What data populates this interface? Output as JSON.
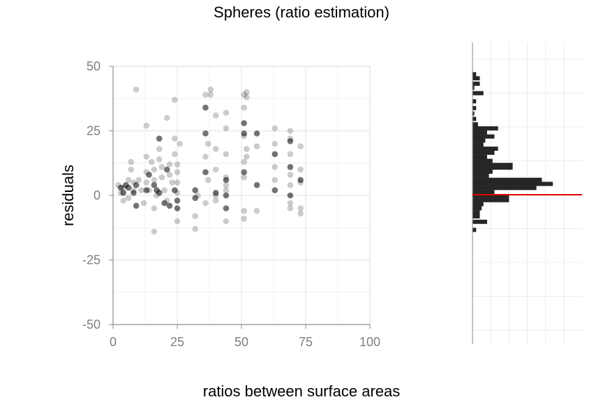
{
  "chart_data": [
    {
      "type": "scatter",
      "title": "Spheres (ratio estimation)",
      "xlabel": "ratios between surface areas",
      "ylabel": "residuals",
      "xlim": [
        0,
        100
      ],
      "ylim": [
        -50,
        50
      ],
      "xticks": [
        "0",
        "25",
        "50",
        "75",
        "100"
      ],
      "yticks": [
        "-50",
        "-25",
        "0",
        "25",
        "50"
      ],
      "grid": true,
      "point_color": "#000000",
      "light_points": [
        [
          2,
          4
        ],
        [
          3,
          1
        ],
        [
          4,
          -2
        ],
        [
          4,
          3
        ],
        [
          6,
          6
        ],
        [
          6,
          -1
        ],
        [
          7,
          13
        ],
        [
          7,
          10
        ],
        [
          8,
          5
        ],
        [
          8,
          2
        ],
        [
          9,
          41
        ],
        [
          10,
          6
        ],
        [
          11,
          2
        ],
        [
          12,
          -3
        ],
        [
          13,
          27
        ],
        [
          13,
          15
        ],
        [
          13,
          9
        ],
        [
          13,
          5
        ],
        [
          14,
          2
        ],
        [
          15,
          13
        ],
        [
          16,
          10
        ],
        [
          16,
          6
        ],
        [
          16,
          -5
        ],
        [
          16,
          -14
        ],
        [
          17,
          0
        ],
        [
          18,
          18
        ],
        [
          18,
          14
        ],
        [
          19,
          11
        ],
        [
          19,
          7
        ],
        [
          20,
          2
        ],
        [
          21,
          30
        ],
        [
          21,
          -2
        ],
        [
          22,
          12
        ],
        [
          22,
          8
        ],
        [
          23,
          5
        ],
        [
          24,
          37
        ],
        [
          24,
          22
        ],
        [
          24,
          16
        ],
        [
          25,
          12
        ],
        [
          25,
          9
        ],
        [
          25,
          5
        ],
        [
          25,
          1
        ],
        [
          25,
          -10
        ],
        [
          26,
          20
        ],
        [
          32,
          -8
        ],
        [
          32,
          -13
        ],
        [
          33,
          0
        ],
        [
          36,
          39
        ],
        [
          36,
          15
        ],
        [
          36,
          -3
        ],
        [
          37,
          6
        ],
        [
          37,
          20
        ],
        [
          38,
          41
        ],
        [
          38,
          39
        ],
        [
          40,
          31
        ],
        [
          40,
          18
        ],
        [
          40,
          10
        ],
        [
          40,
          0
        ],
        [
          40,
          -2
        ],
        [
          44,
          32
        ],
        [
          44,
          26
        ],
        [
          44,
          16
        ],
        [
          44,
          7
        ],
        [
          44,
          4
        ],
        [
          44,
          2
        ],
        [
          44,
          -10
        ],
        [
          51,
          39
        ],
        [
          51,
          34
        ],
        [
          51,
          23
        ],
        [
          51,
          13
        ],
        [
          51,
          7
        ],
        [
          51,
          -6
        ],
        [
          51,
          -9
        ],
        [
          52,
          40
        ],
        [
          52,
          38
        ],
        [
          52,
          18
        ],
        [
          52,
          15
        ],
        [
          56,
          19
        ],
        [
          56,
          -6
        ],
        [
          63,
          26
        ],
        [
          63,
          20
        ],
        [
          63,
          11
        ],
        [
          63,
          6
        ],
        [
          69,
          25
        ],
        [
          69,
          22
        ],
        [
          69,
          16
        ],
        [
          69,
          8
        ],
        [
          69,
          4
        ],
        [
          69,
          -3
        ],
        [
          69,
          -5
        ],
        [
          73,
          19
        ],
        [
          73,
          10
        ],
        [
          73,
          5
        ],
        [
          73,
          -5
        ],
        [
          73,
          -7
        ]
      ],
      "dark_points": [
        [
          3,
          3
        ],
        [
          4,
          1
        ],
        [
          5,
          4
        ],
        [
          6,
          3
        ],
        [
          8,
          1
        ],
        [
          9,
          4
        ],
        [
          9,
          -4
        ],
        [
          13,
          2
        ],
        [
          14,
          8
        ],
        [
          16,
          4
        ],
        [
          17,
          2
        ],
        [
          18,
          22
        ],
        [
          18,
          1
        ],
        [
          20,
          -3
        ],
        [
          21,
          10
        ],
        [
          22,
          -4
        ],
        [
          24,
          2
        ],
        [
          25,
          -2
        ],
        [
          25,
          -5
        ],
        [
          32,
          2
        ],
        [
          32,
          -1
        ],
        [
          36,
          34
        ],
        [
          36,
          24
        ],
        [
          36,
          9
        ],
        [
          40,
          1
        ],
        [
          44,
          6
        ],
        [
          44,
          -5
        ],
        [
          44,
          0
        ],
        [
          51,
          28
        ],
        [
          51,
          24
        ],
        [
          51,
          9
        ],
        [
          56,
          24
        ],
        [
          56,
          4
        ],
        [
          63,
          16
        ],
        [
          63,
          2
        ],
        [
          69,
          21
        ],
        [
          69,
          11
        ],
        [
          69,
          0
        ],
        [
          73,
          6
        ]
      ],
      "reference_line_y": 0
    },
    {
      "type": "bar",
      "orientation": "horizontal",
      "title": "",
      "xlabel": "",
      "ylabel": "",
      "bar_color": "#262626",
      "ref_line_color": "#dd0000",
      "ylim": [
        -50,
        50
      ],
      "xlim": [
        0,
        60
      ],
      "bins": [
        [
          44.5,
          2
        ],
        [
          43,
          4
        ],
        [
          41,
          4
        ],
        [
          39.5,
          1
        ],
        [
          37.5,
          6
        ],
        [
          34.5,
          2
        ],
        [
          32,
          2
        ],
        [
          30,
          1
        ],
        [
          28,
          2
        ],
        [
          26,
          3
        ],
        [
          24.5,
          14
        ],
        [
          23,
          8
        ],
        [
          21.5,
          12
        ],
        [
          20,
          7
        ],
        [
          18.5,
          6
        ],
        [
          17,
          14
        ],
        [
          15.5,
          12
        ],
        [
          14,
          8
        ],
        [
          12.5,
          11
        ],
        [
          11,
          22
        ],
        [
          10,
          22
        ],
        [
          8.5,
          11
        ],
        [
          7,
          9
        ],
        [
          5.5,
          38
        ],
        [
          4,
          44
        ],
        [
          2.5,
          35
        ],
        [
          1,
          12
        ],
        [
          -0.5,
          20
        ],
        [
          -2,
          20
        ],
        [
          -3.5,
          6
        ],
        [
          -5,
          5
        ],
        [
          -6.5,
          4
        ],
        [
          -8,
          4
        ],
        [
          -10,
          8
        ],
        [
          -13,
          2
        ]
      ]
    }
  ]
}
